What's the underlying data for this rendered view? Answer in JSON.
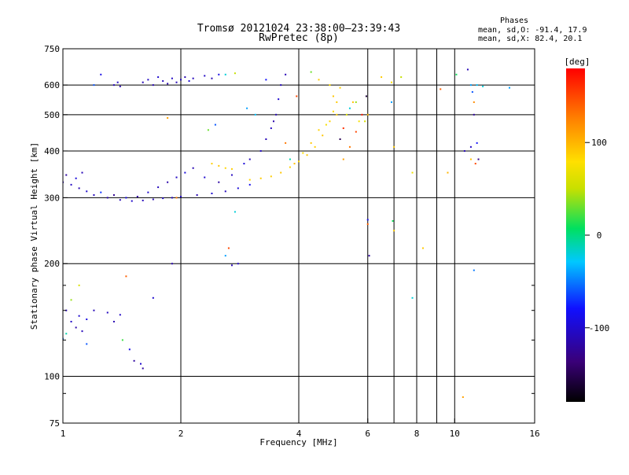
{
  "chart_data": {
    "type": "scatter",
    "title": "Tromsø 20121024 23:38:00–23:39:43",
    "subtitle": "RwPretec (8p)",
    "xlabel": "Frequency [MHz]",
    "ylabel": "Stationary phase Virtual Height [km]",
    "x_scale": "log",
    "y_scale": "log",
    "xlim": [
      1,
      16
    ],
    "ylim": [
      75,
      750
    ],
    "x_ticks": [
      1,
      2,
      4,
      6,
      8,
      10,
      16
    ],
    "x_tick_labels": [
      "1",
      "2",
      "4",
      "6",
      "8",
      "10",
      "16"
    ],
    "x_gridlines": [
      2,
      4,
      6,
      7,
      8,
      9,
      10
    ],
    "y_ticks": [
      75,
      100,
      200,
      300,
      400,
      500,
      600,
      750
    ],
    "y_tick_labels": [
      "75",
      "100",
      "200",
      "300",
      "400",
      "500",
      "600",
      "750"
    ],
    "y_minor_ticks": [
      90,
      125,
      150,
      175
    ],
    "grid": true,
    "phases_legend": {
      "title": "Phases",
      "line_o": "mean, sd,O: -91.4, 17.9",
      "line_x": "mean, sd,X:  82.4, 20.1"
    },
    "colorbar": {
      "label": "[deg]",
      "range": [
        -180,
        180
      ],
      "ticks": [
        100,
        0,
        -100
      ],
      "tick_labels": [
        "100",
        "0",
        "-100"
      ]
    },
    "series": [
      {
        "name": "O",
        "points": [
          [
            1.0,
            330,
            -110
          ],
          [
            1.05,
            325,
            -105
          ],
          [
            1.1,
            318,
            -112
          ],
          [
            1.15,
            312,
            -100
          ],
          [
            1.2,
            305,
            -108
          ],
          [
            1.3,
            300,
            -115
          ],
          [
            1.4,
            296,
            -110
          ],
          [
            1.5,
            294,
            -102
          ],
          [
            1.6,
            295,
            -108
          ],
          [
            1.7,
            297,
            -112
          ],
          [
            1.8,
            299,
            -105
          ],
          [
            1.9,
            300,
            -110
          ],
          [
            2.0,
            302,
            -106
          ],
          [
            2.2,
            305,
            -112
          ],
          [
            2.4,
            308,
            -100
          ],
          [
            2.6,
            312,
            -108
          ],
          [
            2.8,
            318,
            -96
          ],
          [
            3.0,
            325,
            -88
          ],
          [
            1.02,
            345,
            -120
          ],
          [
            1.08,
            338,
            -95
          ],
          [
            1.12,
            350,
            -110
          ],
          [
            1.25,
            310,
            -70
          ],
          [
            1.35,
            305,
            -125
          ],
          [
            1.45,
            300,
            -90
          ],
          [
            1.55,
            302,
            -118
          ],
          [
            1.65,
            310,
            -100
          ],
          [
            1.75,
            320,
            -108
          ],
          [
            1.85,
            330,
            -115
          ],
          [
            1.95,
            340,
            -105
          ],
          [
            2.05,
            350,
            -95
          ],
          [
            2.15,
            360,
            -112
          ],
          [
            2.3,
            340,
            -100
          ],
          [
            2.5,
            330,
            -118
          ],
          [
            2.7,
            345,
            -106
          ],
          [
            1.6,
            610,
            -110
          ],
          [
            1.65,
            620,
            -105
          ],
          [
            1.7,
            600,
            -112
          ],
          [
            1.75,
            630,
            -100
          ],
          [
            1.8,
            615,
            -108
          ],
          [
            1.85,
            605,
            -115
          ],
          [
            1.9,
            625,
            -104
          ],
          [
            1.95,
            610,
            -110
          ],
          [
            2.0,
            620,
            -106
          ],
          [
            2.05,
            630,
            -112
          ],
          [
            2.1,
            615,
            -98
          ],
          [
            2.15,
            625,
            -108
          ],
          [
            2.3,
            635,
            -104
          ],
          [
            2.4,
            625,
            -112
          ],
          [
            2.5,
            640,
            -90
          ],
          [
            1.35,
            600,
            -110
          ],
          [
            1.38,
            610,
            -104
          ],
          [
            1.4,
            595,
            -114
          ],
          [
            1.02,
            150,
            -112
          ],
          [
            1.05,
            140,
            -104
          ],
          [
            1.08,
            135,
            -116
          ],
          [
            1.1,
            145,
            -100
          ],
          [
            1.12,
            132,
            -108
          ],
          [
            1.15,
            142,
            -92
          ],
          [
            1.2,
            150,
            -110
          ],
          [
            1.3,
            148,
            -106
          ],
          [
            1.35,
            140,
            -112
          ],
          [
            1.4,
            146,
            -104
          ],
          [
            3.3,
            430,
            -110
          ],
          [
            3.4,
            460,
            -106
          ],
          [
            3.5,
            500,
            -112
          ],
          [
            3.55,
            550,
            -100
          ],
          [
            3.6,
            600,
            -108
          ],
          [
            3.45,
            480,
            -115
          ],
          [
            3.2,
            400,
            -104
          ],
          [
            3.0,
            380,
            -110
          ],
          [
            2.9,
            370,
            -96
          ],
          [
            3.7,
            640,
            -110
          ],
          [
            10.8,
            660,
            -110
          ],
          [
            11.0,
            410,
            -105
          ],
          [
            11.2,
            500,
            -120
          ],
          [
            1.6,
            105,
            -120
          ],
          [
            1.58,
            108,
            -100
          ],
          [
            1.9,
            200,
            -115
          ],
          [
            2.7,
            198,
            -110
          ],
          [
            2.8,
            200,
            -105
          ]
        ]
      },
      {
        "name": "X",
        "points": [
          [
            3.0,
            335,
            85
          ],
          [
            3.2,
            338,
            90
          ],
          [
            3.4,
            342,
            88
          ],
          [
            3.6,
            350,
            92
          ],
          [
            3.8,
            362,
            86
          ],
          [
            4.0,
            375,
            84
          ],
          [
            4.2,
            390,
            90
          ],
          [
            4.4,
            410,
            88
          ],
          [
            4.6,
            440,
            92
          ],
          [
            4.8,
            480,
            86
          ],
          [
            5.0,
            540,
            90
          ],
          [
            5.1,
            590,
            88
          ],
          [
            3.9,
            370,
            95
          ],
          [
            4.1,
            395,
            80
          ],
          [
            4.3,
            420,
            92
          ],
          [
            4.5,
            455,
            86
          ],
          [
            4.7,
            470,
            75
          ],
          [
            4.9,
            510,
            82
          ],
          [
            2.4,
            370,
            88
          ],
          [
            2.5,
            365,
            92
          ],
          [
            2.6,
            360,
            84
          ],
          [
            2.7,
            358,
            88
          ],
          [
            4.5,
            620,
            90
          ],
          [
            4.8,
            600,
            80
          ],
          [
            4.9,
            560,
            92
          ],
          [
            5.0,
            500,
            86
          ],
          [
            5.3,
            500,
            60
          ],
          [
            5.5,
            540,
            95
          ],
          [
            5.7,
            480,
            75
          ],
          [
            6.9,
            610,
            80
          ],
          [
            7.0,
            410,
            90
          ],
          [
            7.0,
            245,
            88
          ],
          [
            7.8,
            350,
            70
          ],
          [
            8.3,
            220,
            90
          ],
          [
            9.2,
            585,
            140
          ],
          [
            9.6,
            350,
            100
          ],
          [
            10.5,
            88,
            110
          ],
          [
            11.0,
            380,
            95
          ],
          [
            11.2,
            540,
            120
          ],
          [
            6.0,
            500,
            100
          ],
          [
            5.2,
            380,
            110
          ],
          [
            5.4,
            410,
            130
          ],
          [
            5.6,
            450,
            150
          ],
          [
            5.9,
            480,
            60
          ],
          [
            6.5,
            630,
            90
          ]
        ]
      },
      {
        "name": "other",
        "points": [
          [
            1.2,
            600,
            -60
          ],
          [
            1.25,
            640,
            -90
          ],
          [
            1.45,
            185,
            140
          ],
          [
            1.42,
            125,
            20
          ],
          [
            1.48,
            118,
            -90
          ],
          [
            1.52,
            110,
            -120
          ],
          [
            1.1,
            175,
            60
          ],
          [
            1.05,
            160,
            40
          ],
          [
            1.7,
            162,
            -100
          ],
          [
            1.85,
            490,
            110
          ],
          [
            2.35,
            455,
            30
          ],
          [
            2.45,
            470,
            -60
          ],
          [
            2.6,
            640,
            -20
          ],
          [
            2.75,
            645,
            50
          ],
          [
            2.95,
            520,
            -40
          ],
          [
            3.1,
            500,
            -30
          ],
          [
            3.3,
            620,
            -80
          ],
          [
            3.7,
            420,
            130
          ],
          [
            3.8,
            380,
            -10
          ],
          [
            3.95,
            560,
            150
          ],
          [
            4.3,
            650,
            30
          ],
          [
            5.1,
            430,
            -150
          ],
          [
            5.2,
            460,
            160
          ],
          [
            5.4,
            520,
            -20
          ],
          [
            5.6,
            540,
            40
          ],
          [
            5.8,
            500,
            170
          ],
          [
            5.95,
            560,
            -160
          ],
          [
            6.0,
            262,
            -90
          ],
          [
            6.0,
            255,
            140
          ],
          [
            6.05,
            210,
            -120
          ],
          [
            6.9,
            540,
            -40
          ],
          [
            6.95,
            260,
            10
          ],
          [
            7.3,
            630,
            50
          ],
          [
            7.8,
            162,
            -20
          ],
          [
            10.1,
            640,
            10
          ],
          [
            11.0,
            600,
            -40
          ],
          [
            11.1,
            575,
            -60
          ],
          [
            11.4,
            600,
            -30
          ],
          [
            11.8,
            595,
            -20
          ],
          [
            13.8,
            590,
            -40
          ],
          [
            11.2,
            192,
            -50
          ],
          [
            10.6,
            400,
            -110
          ],
          [
            11.3,
            370,
            150
          ],
          [
            11.5,
            380,
            -130
          ],
          [
            11.4,
            420,
            -80
          ],
          [
            2.65,
            220,
            150
          ],
          [
            2.6,
            210,
            -40
          ],
          [
            2.75,
            275,
            -20
          ],
          [
            1.95,
            300,
            130
          ],
          [
            1.0,
            126,
            -50
          ],
          [
            1.02,
            130,
            -10
          ],
          [
            1.15,
            122,
            -60
          ]
        ]
      }
    ]
  }
}
